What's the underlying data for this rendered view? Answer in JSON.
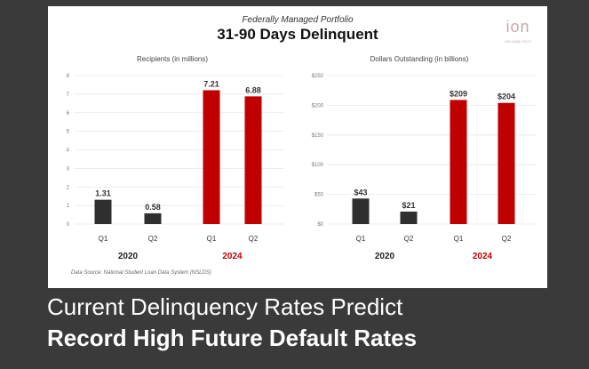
{
  "card": {
    "supertitle": "Federally Managed Portfolio",
    "title": "31-90 Days Delinquent",
    "source": "Data Source: National Student Loan Data System (NSLDS)"
  },
  "logo": {
    "text": "ion",
    "subtext": "ION ANALYTICS"
  },
  "headline": {
    "line1": "Current Delinquency Rates Predict",
    "line2": "Record High Future Default Rates"
  },
  "colors": {
    "year2020": "#2f2f2f",
    "year2024": "#c00000",
    "grid": "#e6e6e6",
    "axis_text": "#777777"
  },
  "chart_data": [
    {
      "type": "bar",
      "title": "Recipients (in millions)",
      "categories": [
        "Q1",
        "Q2",
        "Q1",
        "Q2"
      ],
      "groups": [
        {
          "label": "2020",
          "categories": [
            0,
            1
          ]
        },
        {
          "label": "2024",
          "categories": [
            2,
            3
          ]
        }
      ],
      "values": [
        1.31,
        0.58,
        7.21,
        6.88
      ],
      "data_labels": [
        "1.31",
        "0.58",
        "7.21",
        "6.88"
      ],
      "yticks": [
        0,
        1,
        2,
        3,
        4,
        5,
        6,
        7,
        8
      ],
      "ytick_labels": [
        "0",
        "1",
        "2",
        "3",
        "4",
        "5",
        "6",
        "7",
        "8"
      ],
      "ylim": [
        0,
        8
      ],
      "grid": true
    },
    {
      "type": "bar",
      "title": "Dollars Outstanding (in billions)",
      "categories": [
        "Q1",
        "Q2",
        "Q1",
        "Q2"
      ],
      "groups": [
        {
          "label": "2020",
          "categories": [
            0,
            1
          ]
        },
        {
          "label": "2024",
          "categories": [
            2,
            3
          ]
        }
      ],
      "values": [
        43,
        21,
        209,
        204
      ],
      "data_labels": [
        "$43",
        "$21",
        "$209",
        "$204"
      ],
      "yticks": [
        0,
        50,
        100,
        150,
        200,
        250
      ],
      "ytick_labels": [
        "$0",
        "$50",
        "$100",
        "$150",
        "$200",
        "$250"
      ],
      "ylim": [
        0,
        250
      ],
      "grid": true
    }
  ]
}
